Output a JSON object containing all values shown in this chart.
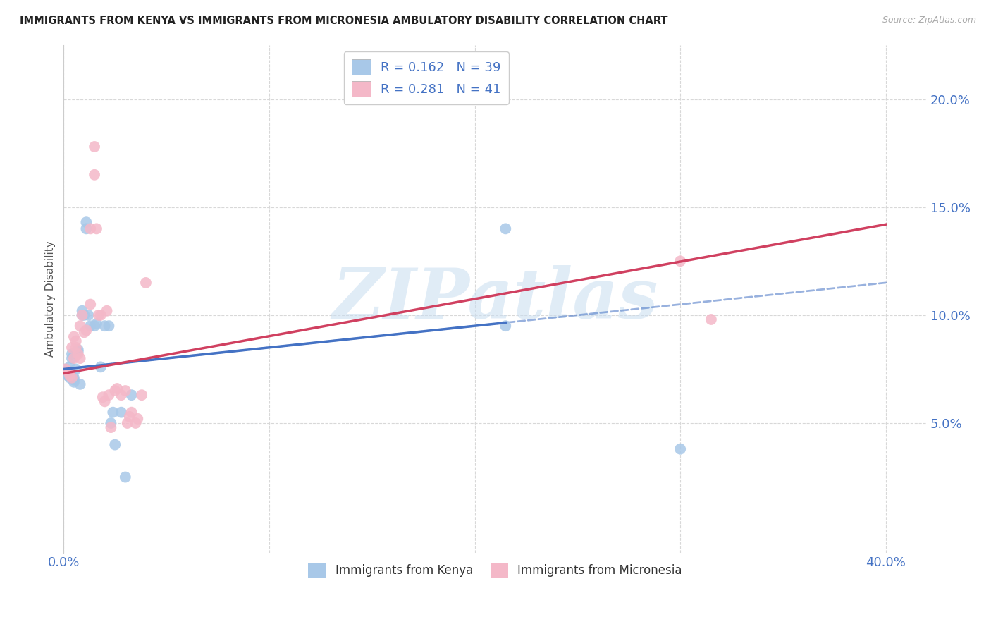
{
  "title": "IMMIGRANTS FROM KENYA VS IMMIGRANTS FROM MICRONESIA AMBULATORY DISABILITY CORRELATION CHART",
  "source": "Source: ZipAtlas.com",
  "ylabel": "Ambulatory Disability",
  "xlim": [
    0.0,
    0.42
  ],
  "ylim": [
    -0.01,
    0.225
  ],
  "yticks": [
    0.05,
    0.1,
    0.15,
    0.2
  ],
  "ytick_labels": [
    "5.0%",
    "10.0%",
    "15.0%",
    "20.0%"
  ],
  "xticks": [
    0.0,
    0.1,
    0.2,
    0.3,
    0.4
  ],
  "xtick_labels": [
    "0.0%",
    "",
    "",
    "",
    "40.0%"
  ],
  "kenya_R": "0.162",
  "kenya_N": "39",
  "micronesia_R": "0.281",
  "micronesia_N": "41",
  "kenya_color": "#a8c8e8",
  "micronesia_color": "#f4b8c8",
  "kenya_line_color": "#4472c4",
  "micronesia_line_color": "#d04060",
  "kenya_line_solid_end": 0.215,
  "kenya_line_x0": 0.0,
  "kenya_line_y0": 0.075,
  "kenya_line_x1": 0.4,
  "kenya_line_y1": 0.115,
  "micro_line_x0": 0.0,
  "micro_line_y0": 0.073,
  "micro_line_x1": 0.4,
  "micro_line_y1": 0.142,
  "kenya_x": [
    0.001,
    0.001,
    0.002,
    0.002,
    0.003,
    0.003,
    0.003,
    0.003,
    0.004,
    0.004,
    0.005,
    0.005,
    0.005,
    0.006,
    0.006,
    0.007,
    0.007,
    0.008,
    0.009,
    0.009,
    0.01,
    0.011,
    0.011,
    0.012,
    0.013,
    0.015,
    0.016,
    0.018,
    0.02,
    0.022,
    0.023,
    0.024,
    0.025,
    0.028,
    0.03,
    0.033,
    0.215,
    0.215,
    0.3
  ],
  "kenya_y": [
    0.075,
    0.073,
    0.074,
    0.072,
    0.073,
    0.076,
    0.074,
    0.071,
    0.08,
    0.082,
    0.07,
    0.071,
    0.069,
    0.075,
    0.083,
    0.084,
    0.083,
    0.068,
    0.1,
    0.102,
    0.1,
    0.14,
    0.143,
    0.1,
    0.095,
    0.095,
    0.096,
    0.076,
    0.095,
    0.095,
    0.05,
    0.055,
    0.04,
    0.055,
    0.025,
    0.063,
    0.14,
    0.095,
    0.038
  ],
  "micro_x": [
    0.001,
    0.002,
    0.003,
    0.003,
    0.004,
    0.004,
    0.005,
    0.005,
    0.006,
    0.006,
    0.007,
    0.008,
    0.008,
    0.009,
    0.01,
    0.011,
    0.013,
    0.013,
    0.015,
    0.015,
    0.016,
    0.017,
    0.018,
    0.019,
    0.02,
    0.022,
    0.023,
    0.025,
    0.026,
    0.028,
    0.03,
    0.031,
    0.032,
    0.033,
    0.035,
    0.036,
    0.038,
    0.04,
    0.3,
    0.315,
    0.021
  ],
  "micro_y": [
    0.075,
    0.074,
    0.073,
    0.072,
    0.071,
    0.085,
    0.08,
    0.09,
    0.088,
    0.085,
    0.082,
    0.08,
    0.095,
    0.1,
    0.092,
    0.093,
    0.105,
    0.14,
    0.178,
    0.165,
    0.14,
    0.1,
    0.1,
    0.062,
    0.06,
    0.063,
    0.048,
    0.065,
    0.066,
    0.063,
    0.065,
    0.05,
    0.053,
    0.055,
    0.05,
    0.052,
    0.063,
    0.115,
    0.125,
    0.098,
    0.102
  ],
  "watermark": "ZIPatlas",
  "background_color": "#ffffff",
  "grid_color": "#d8d8d8"
}
